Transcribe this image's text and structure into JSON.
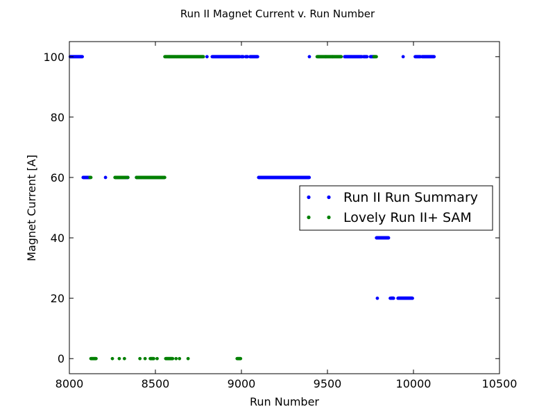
{
  "chart_data": {
    "type": "scatter",
    "title": "Run II Magnet Current v. Run Number",
    "xlabel": "Run Number",
    "ylabel": "Magnet Current [A]",
    "xlim": [
      8000,
      10500
    ],
    "ylim": [
      -5,
      105
    ],
    "x_ticks": [
      8000,
      8500,
      9000,
      9500,
      10000,
      10500
    ],
    "y_ticks": [
      0,
      20,
      40,
      60,
      80,
      100
    ],
    "x_tick_labels": [
      "8000",
      "8500",
      "9000",
      "9500",
      "10000",
      "10500"
    ],
    "y_tick_labels": [
      "0",
      "20",
      "40",
      "60",
      "80",
      "100"
    ],
    "grid": false,
    "legend_position": "center-right",
    "series": [
      {
        "name": "Run II Run Summary",
        "color": "#0000ff",
        "marker": "dot",
        "segments": [
          {
            "x_start": 8005,
            "x_end": 8075,
            "y": 100
          },
          {
            "x_start": 8830,
            "x_end": 8990,
            "y": 100
          },
          {
            "x_start": 9000,
            "x_end": 9010,
            "y": 100
          },
          {
            "x_start": 9025,
            "x_end": 9035,
            "y": 100
          },
          {
            "x_start": 9050,
            "x_end": 9095,
            "y": 100
          },
          {
            "x_start": 9600,
            "x_end": 9700,
            "y": 100
          },
          {
            "x_start": 9710,
            "x_end": 9730,
            "y": 100
          },
          {
            "x_start": 9750,
            "x_end": 9770,
            "y": 100
          },
          {
            "x_start": 10010,
            "x_end": 10040,
            "y": 100
          },
          {
            "x_start": 10050,
            "x_end": 10120,
            "y": 100
          },
          {
            "x_start": 8080,
            "x_end": 8120,
            "y": 60
          },
          {
            "x_start": 8270,
            "x_end": 8340,
            "y": 60
          },
          {
            "x_start": 8390,
            "x_end": 8420,
            "y": 60
          },
          {
            "x_start": 8430,
            "x_end": 8550,
            "y": 60
          },
          {
            "x_start": 9100,
            "x_end": 9395,
            "y": 60
          },
          {
            "x_start": 9785,
            "x_end": 9855,
            "y": 40
          },
          {
            "x_start": 9870,
            "x_end": 9885,
            "y": 20
          },
          {
            "x_start": 9910,
            "x_end": 9995,
            "y": 20
          }
        ],
        "points": [
          {
            "x": 8210,
            "y": 60
          },
          {
            "x": 8580,
            "y": 100
          },
          {
            "x": 8800,
            "y": 100
          },
          {
            "x": 9395,
            "y": 100
          },
          {
            "x": 9450,
            "y": 100
          },
          {
            "x": 9490,
            "y": 100
          },
          {
            "x": 9530,
            "y": 100
          },
          {
            "x": 9940,
            "y": 100
          },
          {
            "x": 9790,
            "y": 20
          },
          {
            "x": 9865,
            "y": 20
          }
        ]
      },
      {
        "name": "Lovely Run II+ SAM",
        "color": "#008000",
        "marker": "dot",
        "segments": [
          {
            "x_start": 8555,
            "x_end": 8780,
            "y": 100
          },
          {
            "x_start": 9440,
            "x_end": 9580,
            "y": 100
          },
          {
            "x_start": 9770,
            "x_end": 9785,
            "y": 100
          },
          {
            "x_start": 8265,
            "x_end": 8330,
            "y": 60
          },
          {
            "x_start": 8390,
            "x_end": 8555,
            "y": 60
          },
          {
            "x_start": 8125,
            "x_end": 8155,
            "y": 0
          },
          {
            "x_start": 8470,
            "x_end": 8490,
            "y": 0
          },
          {
            "x_start": 8560,
            "x_end": 8600,
            "y": 0
          },
          {
            "x_start": 8975,
            "x_end": 8995,
            "y": 0
          }
        ],
        "points": [
          {
            "x": 8120,
            "y": 60
          },
          {
            "x": 8125,
            "y": 60
          },
          {
            "x": 8340,
            "y": 60
          },
          {
            "x": 8250,
            "y": 0
          },
          {
            "x": 8290,
            "y": 0
          },
          {
            "x": 8320,
            "y": 0
          },
          {
            "x": 8410,
            "y": 0
          },
          {
            "x": 8440,
            "y": 0
          },
          {
            "x": 8510,
            "y": 0
          },
          {
            "x": 8620,
            "y": 0
          },
          {
            "x": 8640,
            "y": 0
          },
          {
            "x": 8690,
            "y": 0
          }
        ]
      }
    ]
  }
}
